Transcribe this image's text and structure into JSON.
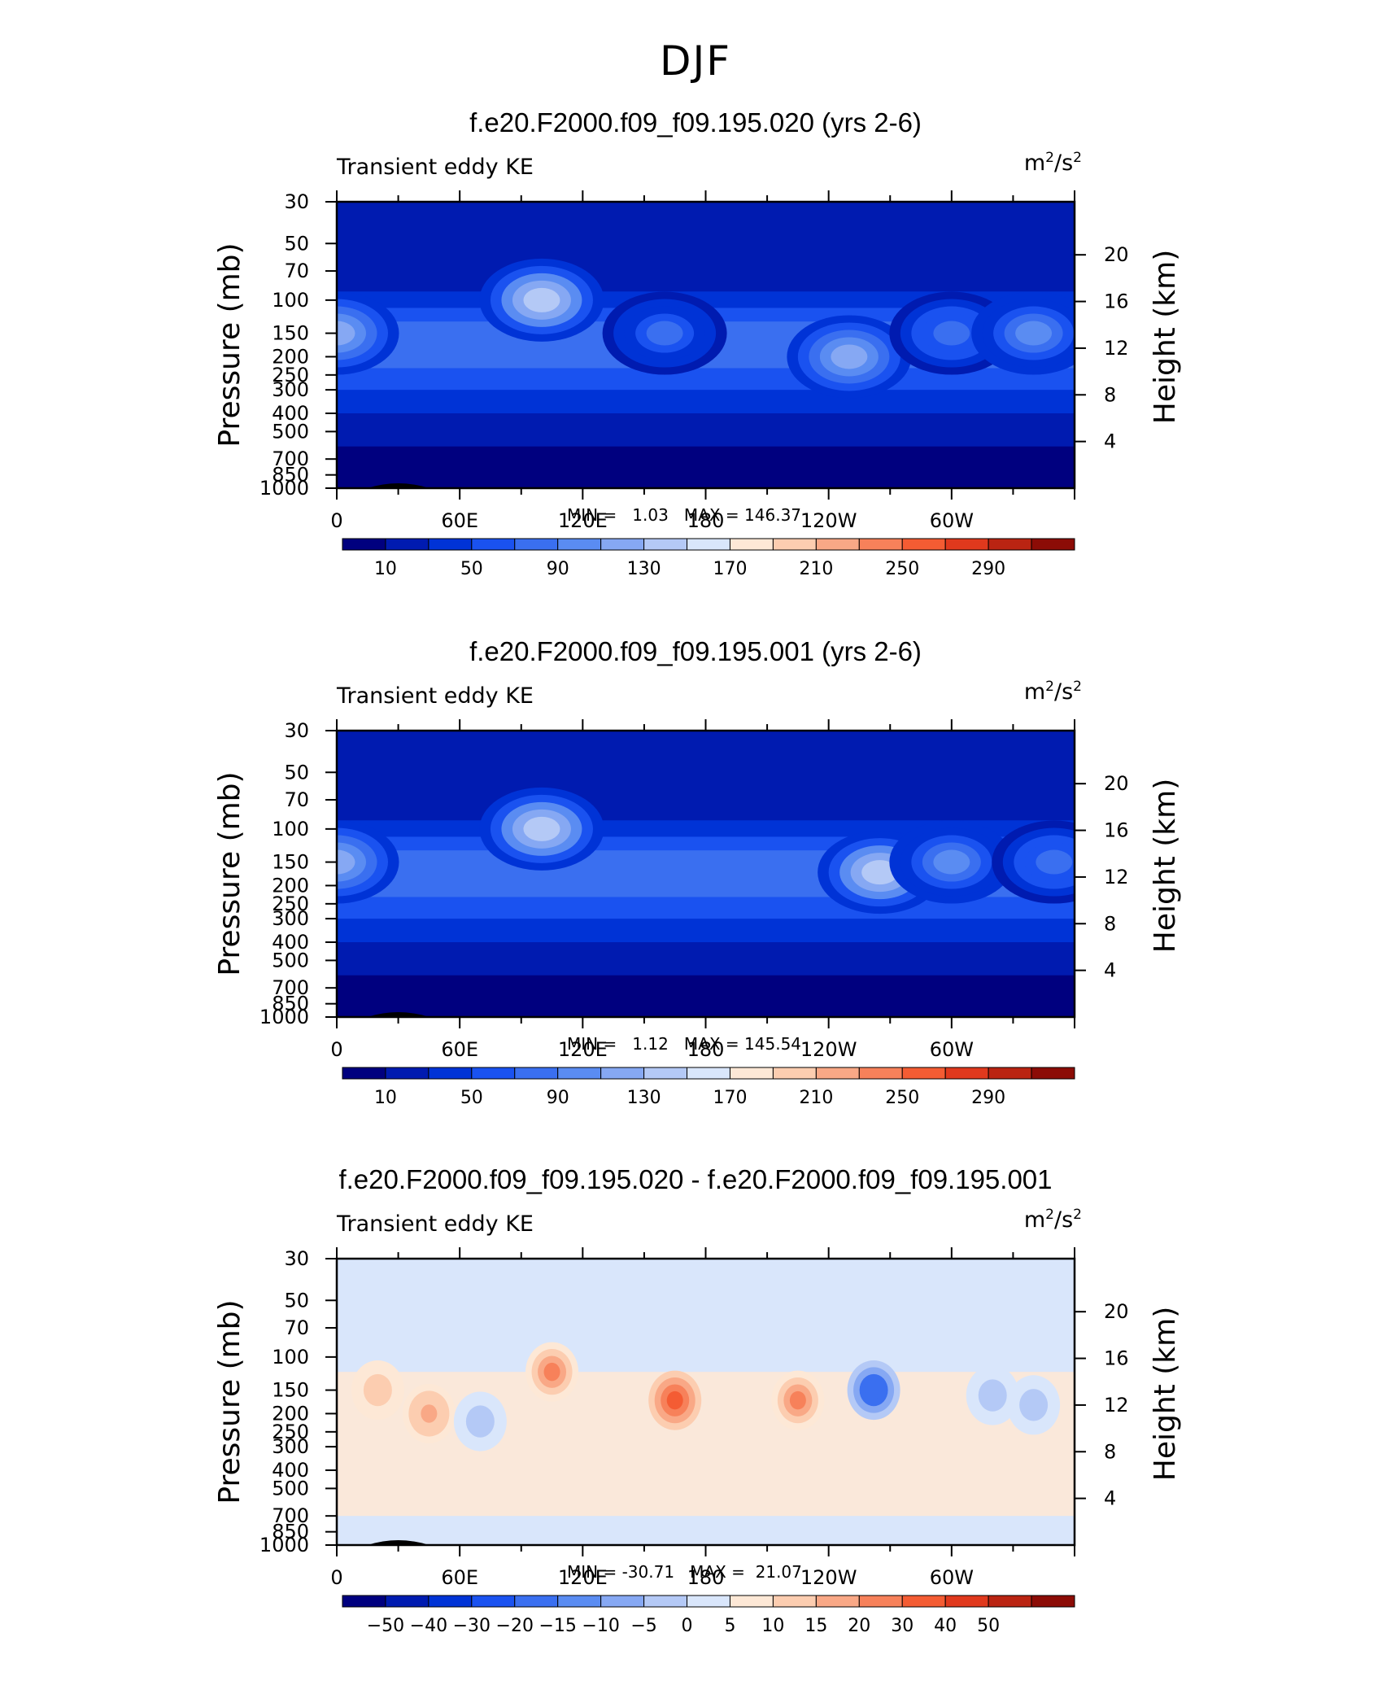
{
  "page_title": "DJF",
  "colors": {
    "abs_scale": [
      "#00007f",
      "#001bb0",
      "#0033d6",
      "#1a52f0",
      "#3a6ff0",
      "#5a8cf2",
      "#86a8f3",
      "#b4c9f6",
      "#d9e6fb",
      "#fde8d6",
      "#fccdb0",
      "#f9a886",
      "#f7815a",
      "#f45c33",
      "#e0391d",
      "#ba2412",
      "#8c0c06"
    ],
    "diff_scale": [
      "#00007f",
      "#001bb0",
      "#0033d6",
      "#1a52f0",
      "#3a6ff0",
      "#5a8cf2",
      "#86a8f3",
      "#b4c9f6",
      "#d9e6fb",
      "#fde8d6",
      "#fccdb0",
      "#f9a886",
      "#f7815a",
      "#f45c33",
      "#e0391d",
      "#ba2412",
      "#8c0c06"
    ]
  },
  "chart_data": [
    {
      "type": "contour",
      "title": "f.e20.F2000.f09_f09.195.020 (yrs 2-6)",
      "variable": "Transient eddy KE",
      "units": "m²/s²",
      "ylabel": "Pressure (mb)",
      "y2label": "Height (km)",
      "x_ticks": [
        "0",
        "60E",
        "120E",
        "180",
        "120W",
        "60W"
      ],
      "y_ticks": [
        "30",
        "50",
        "70",
        "100",
        "150",
        "200",
        "250",
        "300",
        "400",
        "500",
        "700",
        "850",
        "1000"
      ],
      "y2_ticks": [
        "20",
        "16",
        "12",
        "8",
        "4"
      ],
      "min_label": "MIN =",
      "min_value": "1.03",
      "max_label": "MAX =",
      "max_value": "146.37",
      "colorbar_labels": [
        "10",
        "50",
        "90",
        "130",
        "170",
        "210",
        "250",
        "290"
      ],
      "colorbar_levels": [
        10,
        30,
        50,
        70,
        90,
        110,
        130,
        150,
        170,
        190,
        210,
        230,
        250,
        270,
        290
      ],
      "scale": "abs",
      "features": [
        {
          "lon": 0,
          "p": 150,
          "value": 120
        },
        {
          "lon": 100,
          "p": 100,
          "value": 145
        },
        {
          "lon": 160,
          "p": 150,
          "value": 70
        },
        {
          "lon": 250,
          "p": 200,
          "value": 120
        },
        {
          "lon": 300,
          "p": 150,
          "value": 80
        },
        {
          "lon": 340,
          "p": 150,
          "value": 90
        }
      ]
    },
    {
      "type": "contour",
      "title": "f.e20.F2000.f09_f09.195.001 (yrs 2-6)",
      "variable": "Transient eddy KE",
      "units": "m²/s²",
      "ylabel": "Pressure (mb)",
      "y2label": "Height (km)",
      "x_ticks": [
        "0",
        "60E",
        "120E",
        "180",
        "120W",
        "60W"
      ],
      "y_ticks": [
        "30",
        "50",
        "70",
        "100",
        "150",
        "200",
        "250",
        "300",
        "400",
        "500",
        "700",
        "850",
        "1000"
      ],
      "y2_ticks": [
        "20",
        "16",
        "12",
        "8",
        "4"
      ],
      "min_label": "MIN =",
      "min_value": "1.12",
      "max_label": "MAX =",
      "max_value": "145.54",
      "colorbar_labels": [
        "10",
        "50",
        "90",
        "130",
        "170",
        "210",
        "250",
        "290"
      ],
      "colorbar_levels": [
        10,
        30,
        50,
        70,
        90,
        110,
        130,
        150,
        170,
        190,
        210,
        230,
        250,
        270,
        290
      ],
      "scale": "abs",
      "features": [
        {
          "lon": 0,
          "p": 150,
          "value": 115
        },
        {
          "lon": 100,
          "p": 100,
          "value": 140
        },
        {
          "lon": 265,
          "p": 170,
          "value": 145
        },
        {
          "lon": 300,
          "p": 150,
          "value": 90
        },
        {
          "lon": 350,
          "p": 150,
          "value": 80
        }
      ]
    },
    {
      "type": "contour",
      "title": "f.e20.F2000.f09_f09.195.020 - f.e20.F2000.f09_f09.195.001",
      "variable": "Transient eddy KE",
      "units": "m²/s²",
      "ylabel": "Pressure (mb)",
      "y2label": "Height (km)",
      "x_ticks": [
        "0",
        "60E",
        "120E",
        "180",
        "120W",
        "60W"
      ],
      "y_ticks": [
        "30",
        "50",
        "70",
        "100",
        "150",
        "200",
        "250",
        "300",
        "400",
        "500",
        "700",
        "850",
        "1000"
      ],
      "y2_ticks": [
        "20",
        "16",
        "12",
        "8",
        "4"
      ],
      "min_label": "MIN =",
      "min_value": "-30.71",
      "max_label": "MAX =",
      "max_value": "21.07",
      "colorbar_labels": [
        "-50",
        "-40",
        "-30",
        "-20",
        "-15",
        "-10",
        "-5",
        "0",
        "5",
        "10",
        "15",
        "20",
        "30",
        "40",
        "50"
      ],
      "colorbar_levels": [
        -50,
        -40,
        -30,
        -20,
        -15,
        -10,
        -5,
        0,
        5,
        10,
        15,
        20,
        30,
        40,
        50
      ],
      "scale": "diff",
      "features": [
        {
          "lon": 20,
          "p": 150,
          "value": 8
        },
        {
          "lon": 45,
          "p": 200,
          "value": 10
        },
        {
          "lon": 70,
          "p": 220,
          "value": -8
        },
        {
          "lon": 105,
          "p": 120,
          "value": 15
        },
        {
          "lon": 165,
          "p": 170,
          "value": 21
        },
        {
          "lon": 225,
          "p": 170,
          "value": 18
        },
        {
          "lon": 262,
          "p": 150,
          "value": -30
        },
        {
          "lon": 320,
          "p": 160,
          "value": -10
        },
        {
          "lon": 340,
          "p": 180,
          "value": -8
        }
      ]
    }
  ]
}
